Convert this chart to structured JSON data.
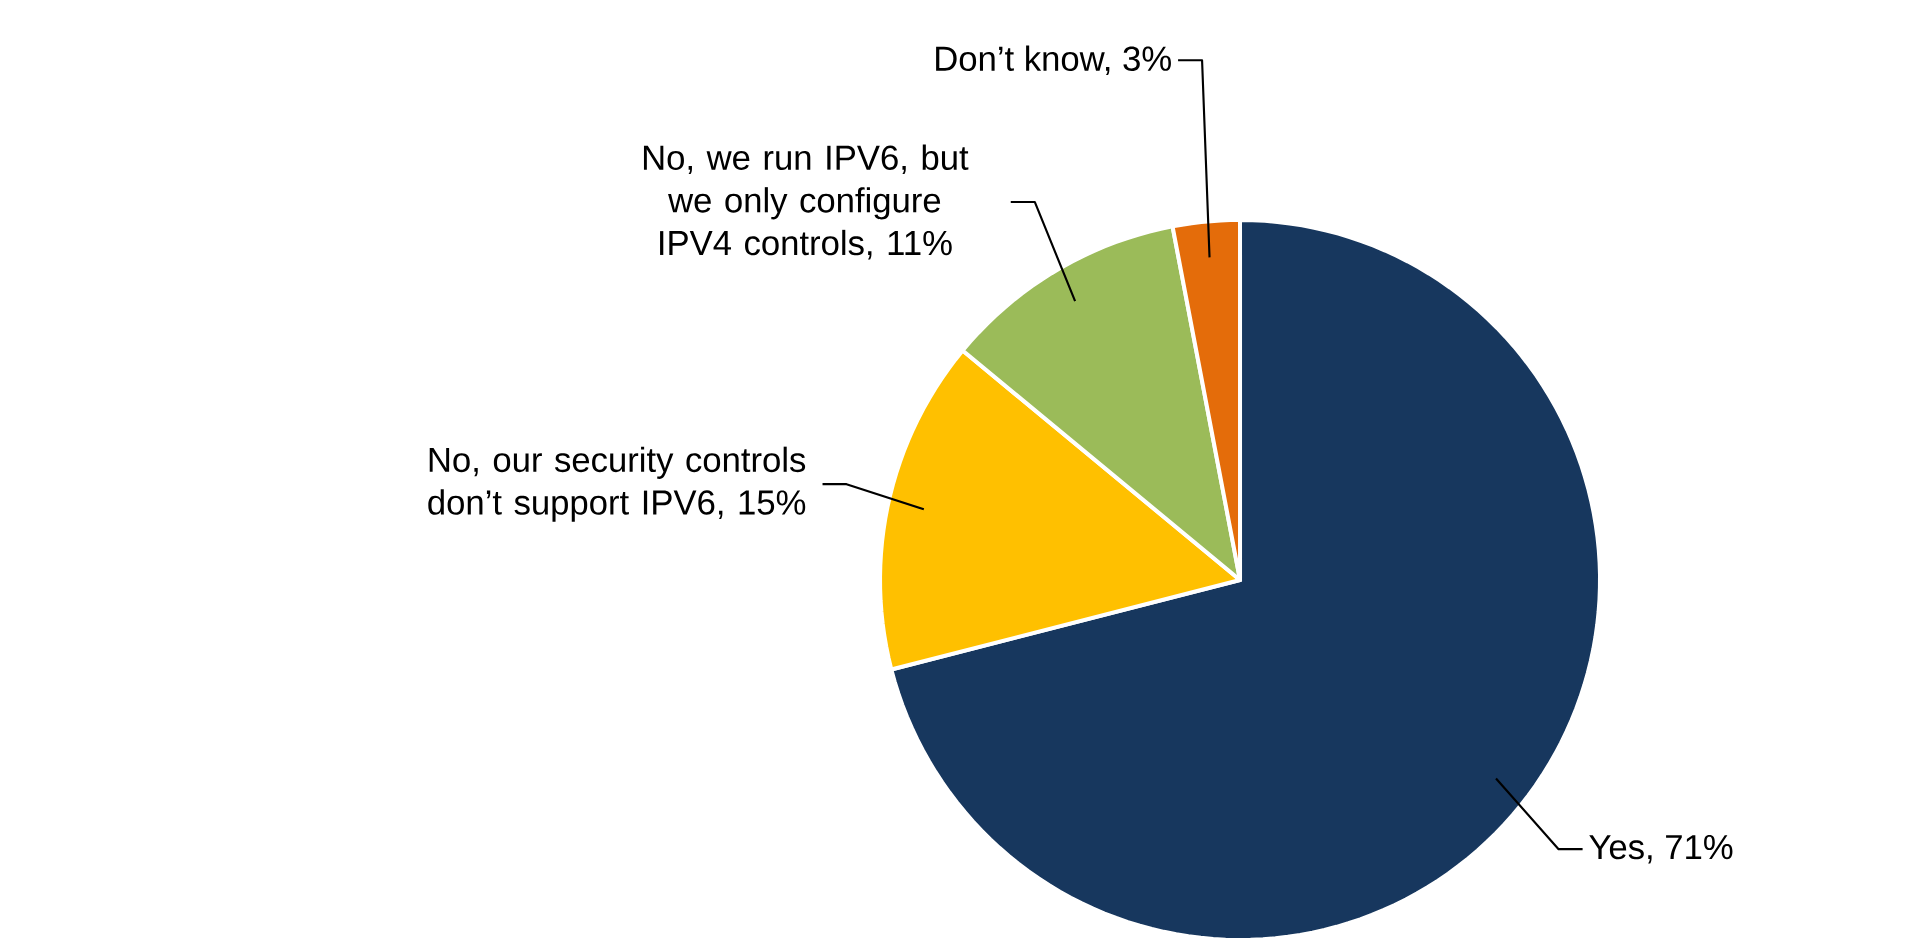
{
  "chart_data": {
    "type": "pie",
    "categories": [
      "Yes, 71%",
      "No, our  security controls don’t support IPV6, 15%",
      "No, we run IPV6, but we only configure IPV4 controls, 11%",
      "Don’t know, 3%"
    ],
    "values": [
      71,
      15,
      11,
      3
    ],
    "colors": [
      "#17375e",
      "#ffc000",
      "#9bbb59",
      "#e46c0a"
    ]
  }
}
